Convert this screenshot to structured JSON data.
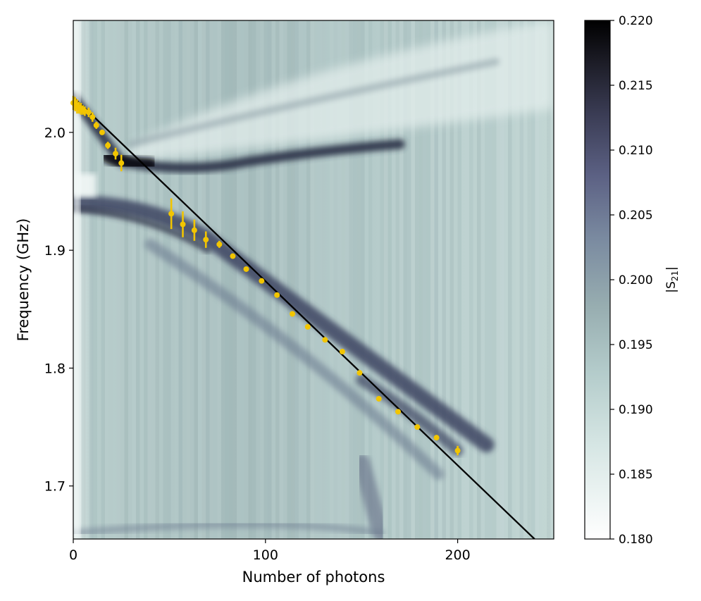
{
  "chart_data": {
    "type": "heatmap",
    "xlabel": "Number of photons",
    "ylabel": "Frequency (GHz)",
    "xlim": [
      0,
      250
    ],
    "ylim": [
      1.655,
      2.095
    ],
    "x_ticks": [
      {
        "value": 0,
        "label": "0"
      },
      {
        "value": 100,
        "label": "100"
      },
      {
        "value": 200,
        "label": "200"
      }
    ],
    "y_ticks": [
      {
        "value": 1.7,
        "label": "1.7"
      },
      {
        "value": 1.8,
        "label": "1.8"
      },
      {
        "value": 1.9,
        "label": "1.9"
      },
      {
        "value": 2.0,
        "label": "2.0"
      }
    ],
    "colorbar": {
      "label": "|S21|",
      "label_main": "|S",
      "label_sub": "21",
      "label_end": "|",
      "range": [
        0.18,
        0.22
      ],
      "colormap": "bone_r",
      "ticks": [
        {
          "value": 0.18,
          "label": "0.180"
        },
        {
          "value": 0.185,
          "label": "0.185"
        },
        {
          "value": 0.19,
          "label": "0.190"
        },
        {
          "value": 0.195,
          "label": "0.195"
        },
        {
          "value": 0.2,
          "label": "0.200"
        },
        {
          "value": 0.205,
          "label": "0.205"
        },
        {
          "value": 0.21,
          "label": "0.210"
        },
        {
          "value": 0.215,
          "label": "0.215"
        },
        {
          "value": 0.22,
          "label": "0.220"
        }
      ]
    },
    "fit_line": {
      "color": "#000000",
      "points": [
        [
          0,
          2.03
        ],
        [
          240,
          1.655
        ]
      ]
    },
    "measured_points": {
      "color": "#f2c500",
      "points": [
        {
          "x": 0,
          "y": 2.025,
          "err": 0.006
        },
        {
          "x": 1,
          "y": 2.024,
          "err": 0.006
        },
        {
          "x": 2,
          "y": 2.022,
          "err": 0.006
        },
        {
          "x": 3,
          "y": 2.021,
          "err": 0.005
        },
        {
          "x": 4,
          "y": 2.02,
          "err": 0.005
        },
        {
          "x": 5,
          "y": 2.019,
          "err": 0.004
        },
        {
          "x": 6,
          "y": 2.018,
          "err": 0.004
        },
        {
          "x": 8,
          "y": 2.017,
          "err": 0.004
        },
        {
          "x": 10,
          "y": 2.013,
          "err": 0.004
        },
        {
          "x": 12,
          "y": 2.006,
          "err": 0.003
        },
        {
          "x": 15,
          "y": 2.0,
          "err": 0.002
        },
        {
          "x": 18,
          "y": 1.989,
          "err": 0.003
        },
        {
          "x": 22,
          "y": 1.982,
          "err": 0.005
        },
        {
          "x": 25,
          "y": 1.974,
          "err": 0.007
        },
        {
          "x": 51,
          "y": 1.931,
          "err": 0.013
        },
        {
          "x": 57,
          "y": 1.922,
          "err": 0.011
        },
        {
          "x": 63,
          "y": 1.917,
          "err": 0.009
        },
        {
          "x": 69,
          "y": 1.909,
          "err": 0.007
        },
        {
          "x": 76,
          "y": 1.905,
          "err": 0.003
        },
        {
          "x": 83,
          "y": 1.895,
          "err": 0.002
        },
        {
          "x": 90,
          "y": 1.884,
          "err": 0.002
        },
        {
          "x": 98,
          "y": 1.874,
          "err": 0.002
        },
        {
          "x": 106,
          "y": 1.862,
          "err": 0.002
        },
        {
          "x": 114,
          "y": 1.846,
          "err": 0.002
        },
        {
          "x": 122,
          "y": 1.835,
          "err": 0.002
        },
        {
          "x": 131,
          "y": 1.824,
          "err": 0.002
        },
        {
          "x": 140,
          "y": 1.814,
          "err": 0.002
        },
        {
          "x": 149,
          "y": 1.796,
          "err": 0.002
        },
        {
          "x": 159,
          "y": 1.774,
          "err": 0.002
        },
        {
          "x": 169,
          "y": 1.763,
          "err": 0.002
        },
        {
          "x": 179,
          "y": 1.75,
          "err": 0.002
        },
        {
          "x": 189,
          "y": 1.741,
          "err": 0.002
        },
        {
          "x": 200,
          "y": 1.73,
          "err": 0.004
        }
      ]
    },
    "grid": false
  }
}
